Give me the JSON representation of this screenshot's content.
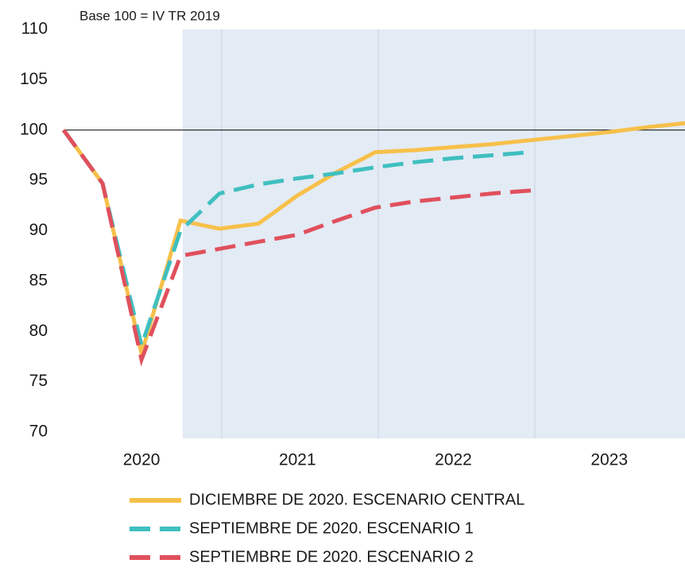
{
  "chart_data": {
    "type": "line",
    "subtitle": "Base 100 = IV TR 2019",
    "categories": [
      null,
      null,
      "2020",
      null,
      null,
      null,
      "2021",
      null,
      null,
      null,
      "2022",
      null,
      null,
      null,
      "2023",
      null,
      null
    ],
    "series": [
      {
        "name": "DICIEMBRE DE 2020. ESCENARIO CENTRAL",
        "color": "#f7c04a",
        "dash": "solid",
        "values": [
          100,
          94.7,
          77.8,
          91.0,
          90.2,
          90.7,
          93.5,
          95.8,
          97.8,
          98.0,
          98.3,
          98.6,
          99.0,
          99.4,
          99.8,
          100.3,
          100.7
        ]
      },
      {
        "name": "SEPTIEMBRE DE 2020. ESCENARIO 1",
        "color": "#3fbfbf",
        "dash": "dashed",
        "values": [
          100,
          94.7,
          78.6,
          90.0,
          93.7,
          94.6,
          95.2,
          95.7,
          96.3,
          96.8,
          97.2,
          97.5,
          97.8,
          null,
          null,
          null,
          null
        ]
      },
      {
        "name": "SEPTIEMBRE DE 2020. ESCENARIO 2",
        "color": "#e0505c",
        "dash": "dashed",
        "values": [
          100,
          94.7,
          77.2,
          87.5,
          88.2,
          88.9,
          89.6,
          91.0,
          92.3,
          92.9,
          93.3,
          93.7,
          94.0,
          null,
          null,
          null,
          null
        ]
      }
    ],
    "ylim": [
      70,
      110
    ],
    "yticks": [
      70,
      75,
      80,
      85,
      90,
      95,
      100,
      105,
      110
    ],
    "reference_line": 100
  }
}
